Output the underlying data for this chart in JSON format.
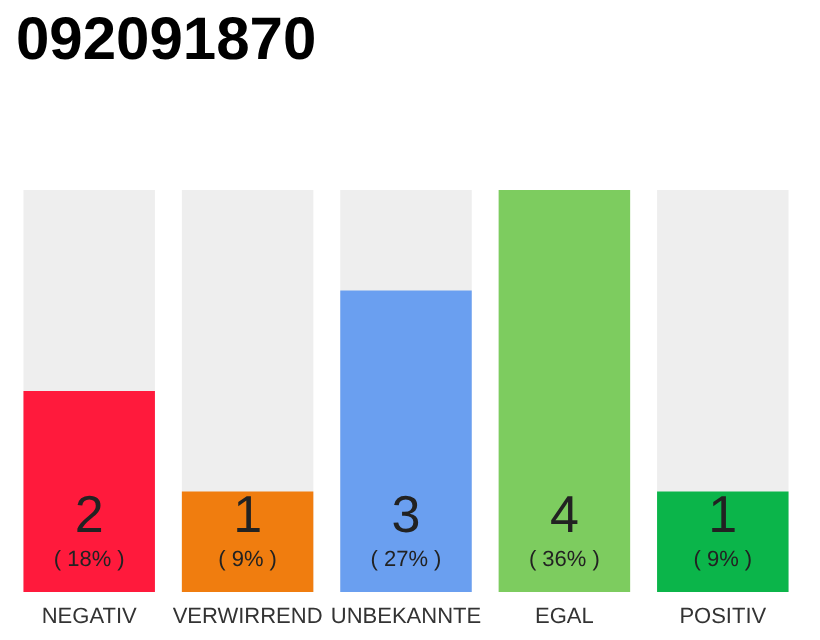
{
  "chart_data": {
    "type": "bar",
    "title": "092091870",
    "categories": [
      "NEGATIV",
      "VERWIRREND",
      "UNBEKANNTE",
      "EGAL",
      "POSITIV"
    ],
    "values": [
      2,
      1,
      3,
      4,
      1
    ],
    "colors": [
      "#ff1a3c",
      "#f07d0f",
      "#6a9ff0",
      "#7dcc5f",
      "#0bb54a"
    ],
    "value_labels": [
      "2\n( 18% )",
      "1\n( 9% )",
      "3\n( 27% )",
      "4\n( 36% )",
      "1\n( 9% )"
    ]
  }
}
